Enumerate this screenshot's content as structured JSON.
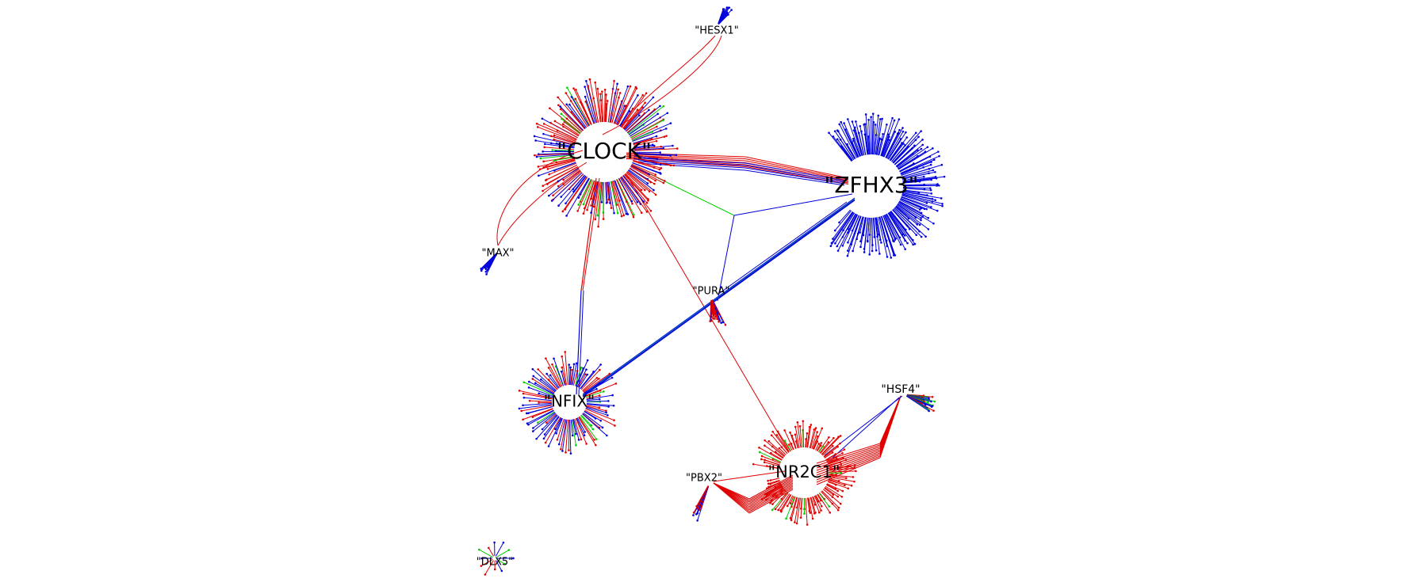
{
  "graph": {
    "colors": {
      "activation": "#e00000",
      "repression": "#0000dd",
      "other": "#00cc00",
      "label": "#000000"
    },
    "hubs": [
      {
        "id": "CLOCK",
        "label": "\"CLOCK\""
      },
      {
        "id": "ZFHX3",
        "label": "\"ZFHX3\""
      },
      {
        "id": "NFIX",
        "label": "\"NFIX\""
      },
      {
        "id": "NR2C1",
        "label": "\"NR2C1\""
      }
    ],
    "small_nodes": [
      {
        "id": "HESX1",
        "label": "\"HESX1\""
      },
      {
        "id": "MAX",
        "label": "\"MAX\""
      },
      {
        "id": "PURA",
        "label": "\"PURA\""
      },
      {
        "id": "HSF4",
        "label": "\"HSF4\""
      },
      {
        "id": "PBX2",
        "label": "\"PBX2\""
      },
      {
        "id": "DLX5",
        "label": "\"DLX5\""
      }
    ]
  }
}
